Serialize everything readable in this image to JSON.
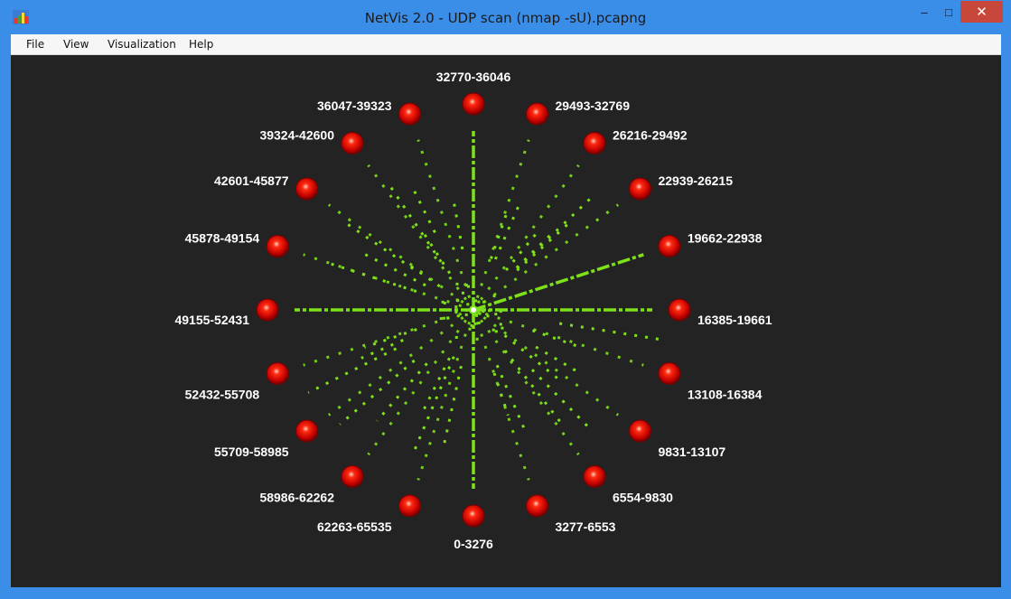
{
  "window": {
    "title": "NetVis 2.0 - UDP scan (nmap -sU).pcapng",
    "controls": {
      "minimize": "–",
      "maximize": "□",
      "close": "✕"
    }
  },
  "menu": {
    "items": [
      "File",
      "View",
      "Visualization",
      "Help"
    ]
  },
  "visualization": {
    "background": "#232323",
    "node_color": "#e01010",
    "edge_color": "#7ee21a",
    "port_ranges": [
      "0-3276",
      "3277-6553",
      "6554-9830",
      "9831-13107",
      "13108-16384",
      "16385-19661",
      "19662-22938",
      "22939-26215",
      "26216-29492",
      "29493-32769",
      "32770-36046",
      "36047-39323",
      "39324-42600",
      "42601-45877",
      "45878-49154",
      "49155-52431",
      "52432-55708",
      "55709-58985",
      "58986-62262",
      "62263-65535"
    ],
    "heavy_ranges": [
      "0-3276",
      "16385-19661",
      "19662-22938",
      "32770-36046",
      "49155-52431"
    ]
  }
}
